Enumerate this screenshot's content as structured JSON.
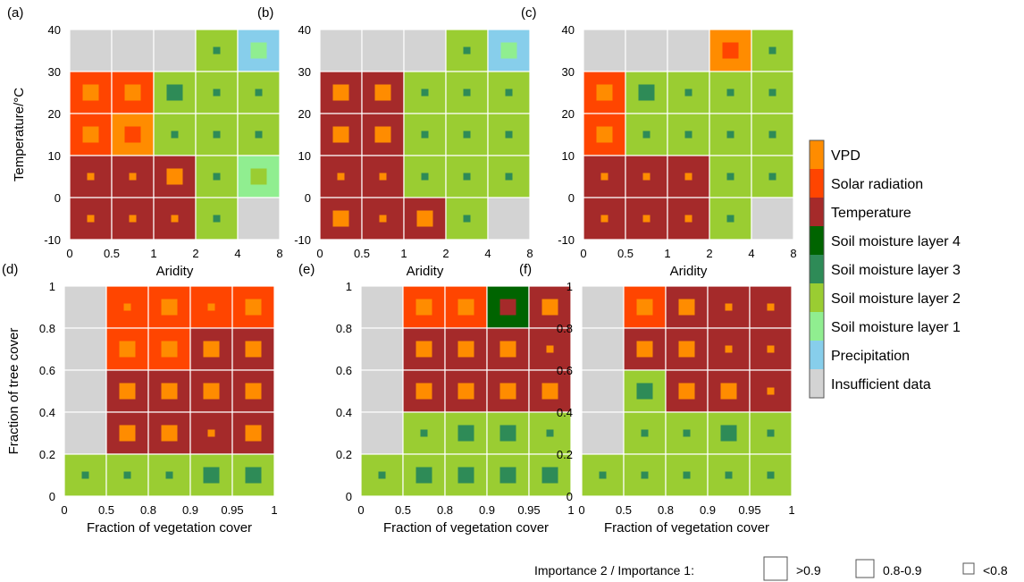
{
  "chart_data": [
    {
      "panel": "(a)",
      "type": "heatmap",
      "xlabel": "Aridity",
      "ylabel": "Temperature/°C",
      "x_ticks": [
        "0",
        "0.5",
        "1",
        "2",
        "4",
        "8"
      ],
      "y_ticks": [
        "40",
        "30",
        "20",
        "10",
        "0",
        "-10"
      ],
      "cells": [
        [
          [
            "ins",
            null
          ],
          [
            "ins",
            null
          ],
          [
            "ins",
            null
          ],
          [
            "sm2",
            "s"
          ],
          [
            "pre",
            "m"
          ]
        ],
        [
          [
            "sol",
            "m"
          ],
          [
            "sol",
            "m"
          ],
          [
            "sm2",
            "m"
          ],
          [
            "sm2",
            "s"
          ],
          [
            "sm2",
            "s"
          ]
        ],
        [
          [
            "sol",
            "m"
          ],
          [
            "vpd",
            "m"
          ],
          [
            "sm2",
            "s"
          ],
          [
            "sm2",
            "s"
          ],
          [
            "sm2",
            "s"
          ]
        ],
        [
          [
            "tem",
            "s"
          ],
          [
            "tem",
            "s"
          ],
          [
            "tem",
            "m"
          ],
          [
            "sm2",
            "s"
          ],
          [
            "sm1",
            "m"
          ]
        ],
        [
          [
            "tem",
            "s"
          ],
          [
            "tem",
            "s"
          ],
          [
            "tem",
            "s"
          ],
          [
            "sm2",
            "s"
          ],
          [
            "ins",
            null
          ]
        ]
      ]
    },
    {
      "panel": "(b)",
      "type": "heatmap",
      "xlabel": "Aridity",
      "ylabel": "",
      "x_ticks": [
        "0",
        "0.5",
        "1",
        "2",
        "4",
        "8"
      ],
      "y_ticks": [
        "40",
        "30",
        "20",
        "10",
        "0",
        "-10"
      ],
      "cells": [
        [
          [
            "ins",
            null
          ],
          [
            "ins",
            null
          ],
          [
            "ins",
            null
          ],
          [
            "sm2",
            "s"
          ],
          [
            "pre",
            "m"
          ]
        ],
        [
          [
            "tem",
            "m"
          ],
          [
            "tem",
            "m"
          ],
          [
            "sm2",
            "s"
          ],
          [
            "sm2",
            "s"
          ],
          [
            "sm2",
            "s"
          ]
        ],
        [
          [
            "tem",
            "m"
          ],
          [
            "tem",
            "m"
          ],
          [
            "sm2",
            "s"
          ],
          [
            "sm2",
            "s"
          ],
          [
            "sm2",
            "s"
          ]
        ],
        [
          [
            "tem",
            "s"
          ],
          [
            "tem",
            "s"
          ],
          [
            "sm2",
            "s"
          ],
          [
            "sm2",
            "s"
          ],
          [
            "sm2",
            "s"
          ]
        ],
        [
          [
            "tem",
            "m"
          ],
          [
            "tem",
            "s"
          ],
          [
            "tem",
            "m"
          ],
          [
            "sm2",
            "s"
          ],
          [
            "ins",
            null
          ]
        ]
      ]
    },
    {
      "panel": "(c)",
      "type": "heatmap",
      "xlabel": "Aridity",
      "ylabel": "",
      "x_ticks": [
        "0",
        "0.5",
        "1",
        "2",
        "4",
        "8"
      ],
      "y_ticks": [
        "40",
        "30",
        "20",
        "10",
        "0",
        "-10"
      ],
      "cells": [
        [
          [
            "ins",
            null
          ],
          [
            "ins",
            null
          ],
          [
            "ins",
            null
          ],
          [
            "vpd",
            "m"
          ],
          [
            "sm2",
            "s"
          ]
        ],
        [
          [
            "sol",
            "m"
          ],
          [
            "sm2",
            "m"
          ],
          [
            "sm2",
            "s"
          ],
          [
            "sm2",
            "s"
          ],
          [
            "sm2",
            "s"
          ]
        ],
        [
          [
            "sol",
            "m"
          ],
          [
            "sm2",
            "s"
          ],
          [
            "sm2",
            "s"
          ],
          [
            "sm2",
            "s"
          ],
          [
            "sm2",
            "s"
          ]
        ],
        [
          [
            "tem",
            "s"
          ],
          [
            "tem",
            "s"
          ],
          [
            "tem",
            "s"
          ],
          [
            "sm2",
            "s"
          ],
          [
            "sm2",
            "s"
          ]
        ],
        [
          [
            "tem",
            "s"
          ],
          [
            "tem",
            "s"
          ],
          [
            "tem",
            "s"
          ],
          [
            "sm2",
            "s"
          ],
          [
            "ins",
            null
          ]
        ]
      ]
    },
    {
      "panel": "(d)",
      "type": "heatmap",
      "xlabel": "Fraction of vegetation cover",
      "ylabel": "Fraction of tree cover",
      "x_ticks": [
        "0",
        "0.5",
        "0.8",
        "0.9",
        "0.95",
        "1"
      ],
      "y_ticks": [
        "1",
        "0.8",
        "0.6",
        "0.4",
        "0.2",
        "0"
      ],
      "cells": [
        [
          [
            "ins",
            null
          ],
          [
            "sol",
            "s"
          ],
          [
            "sol",
            "m"
          ],
          [
            "sol",
            "s"
          ],
          [
            "sol",
            "m"
          ]
        ],
        [
          [
            "ins",
            null
          ],
          [
            "sol",
            "m"
          ],
          [
            "sol",
            "m"
          ],
          [
            "tem",
            "m"
          ],
          [
            "tem",
            "m"
          ]
        ],
        [
          [
            "ins",
            null
          ],
          [
            "tem",
            "m"
          ],
          [
            "tem",
            "m"
          ],
          [
            "tem",
            "m"
          ],
          [
            "tem",
            "m"
          ]
        ],
        [
          [
            "ins",
            null
          ],
          [
            "tem",
            "m"
          ],
          [
            "tem",
            "m"
          ],
          [
            "tem",
            "s"
          ],
          [
            "tem",
            "m"
          ]
        ],
        [
          [
            "sm2",
            "s"
          ],
          [
            "sm2",
            "s"
          ],
          [
            "sm2",
            "s"
          ],
          [
            "sm2",
            "m"
          ],
          [
            "sm2",
            "m"
          ]
        ]
      ]
    },
    {
      "panel": "(e)",
      "type": "heatmap",
      "xlabel": "Fraction of vegetation cover",
      "ylabel": "",
      "x_ticks": [
        "0",
        "0.5",
        "0.8",
        "0.9",
        "0.95",
        "1"
      ],
      "y_ticks": [
        "1",
        "0.8",
        "0.6",
        "0.4",
        "0.2",
        "0"
      ],
      "cells": [
        [
          [
            "ins",
            null
          ],
          [
            "sol",
            "m"
          ],
          [
            "sol",
            "m"
          ],
          [
            "sm4",
            "m"
          ],
          [
            "tem",
            "m"
          ]
        ],
        [
          [
            "ins",
            null
          ],
          [
            "tem",
            "m"
          ],
          [
            "tem",
            "m"
          ],
          [
            "tem",
            "m"
          ],
          [
            "tem",
            "s"
          ]
        ],
        [
          [
            "ins",
            null
          ],
          [
            "tem",
            "m"
          ],
          [
            "tem",
            "m"
          ],
          [
            "tem",
            "m"
          ],
          [
            "tem",
            "m"
          ]
        ],
        [
          [
            "ins",
            null
          ],
          [
            "sm2",
            "s"
          ],
          [
            "sm2",
            "m"
          ],
          [
            "sm2",
            "m"
          ],
          [
            "sm2",
            "s"
          ]
        ],
        [
          [
            "sm2",
            "s"
          ],
          [
            "sm2",
            "m"
          ],
          [
            "sm2",
            "m"
          ],
          [
            "sm2",
            "m"
          ],
          [
            "sm2",
            "m"
          ]
        ]
      ]
    },
    {
      "panel": "(f)",
      "type": "heatmap",
      "xlabel": "Fraction of vegetation cover",
      "ylabel": "",
      "x_ticks": [
        "0",
        "0.5",
        "0.8",
        "0.9",
        "0.95",
        "1"
      ],
      "y_ticks": [
        "1",
        "0.8",
        "0.6",
        "0.4",
        "0.2",
        "0"
      ],
      "cells": [
        [
          [
            "ins",
            null
          ],
          [
            "sol",
            "m"
          ],
          [
            "tem",
            "m"
          ],
          [
            "tem",
            "s"
          ],
          [
            "tem",
            "s"
          ]
        ],
        [
          [
            "ins",
            null
          ],
          [
            "tem",
            "m"
          ],
          [
            "tem",
            "m"
          ],
          [
            "tem",
            "s"
          ],
          [
            "tem",
            "s"
          ]
        ],
        [
          [
            "ins",
            null
          ],
          [
            "sm2",
            "m"
          ],
          [
            "tem",
            "m"
          ],
          [
            "tem",
            "m"
          ],
          [
            "tem",
            "s"
          ]
        ],
        [
          [
            "ins",
            null
          ],
          [
            "sm2",
            "s"
          ],
          [
            "sm2",
            "s"
          ],
          [
            "sm2",
            "m"
          ],
          [
            "sm2",
            "s"
          ]
        ],
        [
          [
            "sm2",
            "s"
          ],
          [
            "sm2",
            "s"
          ],
          [
            "sm2",
            "s"
          ],
          [
            "sm2",
            "s"
          ],
          [
            "sm2",
            "s"
          ]
        ]
      ]
    }
  ],
  "legend": {
    "items": [
      {
        "key": "vpd",
        "label": "VPD",
        "color": "#ff8c00"
      },
      {
        "key": "sol",
        "label": "Solar radiation",
        "color": "#ff4500"
      },
      {
        "key": "tem",
        "label": "Temperature",
        "color": "#a52a2a"
      },
      {
        "key": "sm4",
        "label": "Soil moisture layer 4",
        "color": "#006400"
      },
      {
        "key": "sm3",
        "label": "Soil moisture layer 3",
        "color": "#2e8b57"
      },
      {
        "key": "sm2",
        "label": "Soil moisture layer 2",
        "color": "#9acd32"
      },
      {
        "key": "sm1",
        "label": "Soil moisture layer 1",
        "color": "#90ee90"
      },
      {
        "key": "pre",
        "label": "Precipitation",
        "color": "#87ceeb"
      },
      {
        "key": "ins",
        "label": "Insufficient data",
        "color": "#d3d3d3"
      }
    ]
  },
  "size_key": {
    "title": "Importance 2 / Importance 1:",
    "items": [
      {
        "label": ">0.9",
        "size": "l"
      },
      {
        "label": "0.8-0.9",
        "size": "m"
      },
      {
        "label": "<0.8",
        "size": "s"
      }
    ]
  }
}
